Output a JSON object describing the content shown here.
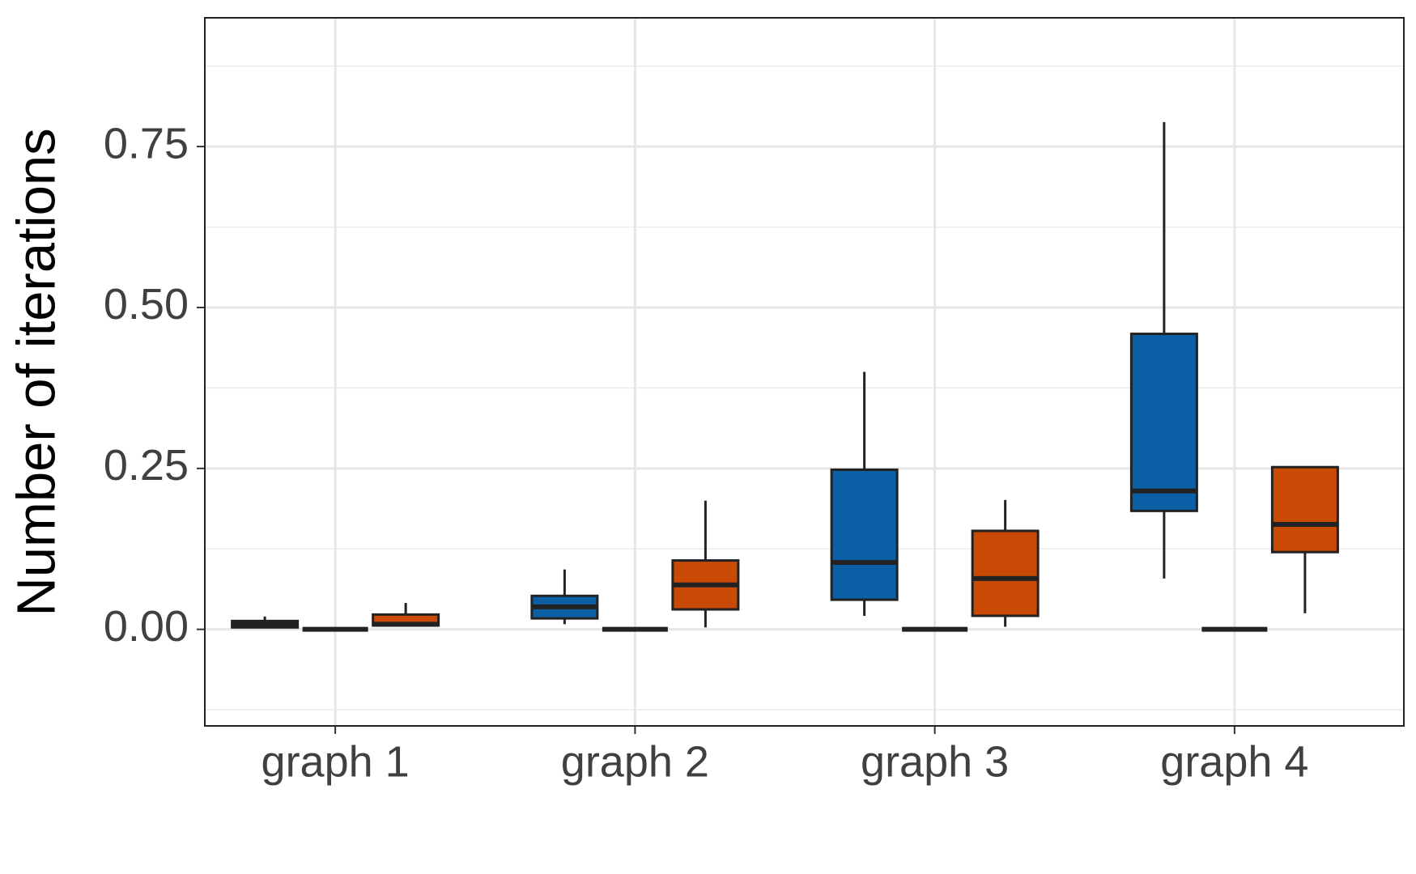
{
  "chart_data": {
    "type": "box",
    "y_label": "Number of iterations",
    "categories": [
      "graph 1",
      "graph 2",
      "graph 3",
      "graph 4"
    ],
    "series": [
      {
        "color": "#0a5fa5",
        "values": [
          {
            "min": 0.003,
            "q1": 0.003,
            "median": 0.008,
            "q3": 0.013,
            "max": 0.02
          },
          {
            "min": 0.008,
            "q1": 0.017,
            "median": 0.035,
            "q3": 0.052,
            "max": 0.093
          },
          {
            "min": 0.021,
            "q1": 0.046,
            "median": 0.104,
            "q3": 0.248,
            "max": 0.4
          },
          {
            "min": 0.079,
            "q1": 0.184,
            "median": 0.215,
            "q3": 0.459,
            "max": 0.788
          }
        ]
      },
      {
        "color": "#7f7f7f",
        "values": [
          {
            "min": 0,
            "q1": 0,
            "median": 0,
            "q3": 0,
            "max": 0
          },
          {
            "min": 0,
            "q1": 0,
            "median": 0,
            "q3": 0,
            "max": 0
          },
          {
            "min": 0,
            "q1": 0,
            "median": 0,
            "q3": 0,
            "max": 0
          },
          {
            "min": 0,
            "q1": 0,
            "median": 0,
            "q3": 0,
            "max": 0
          }
        ]
      },
      {
        "color": "#c94a05",
        "values": [
          {
            "min": 0.006,
            "q1": 0.006,
            "median": 0.008,
            "q3": 0.023,
            "max": 0.041
          },
          {
            "min": 0.003,
            "q1": 0.031,
            "median": 0.069,
            "q3": 0.107,
            "max": 0.2
          },
          {
            "min": 0.004,
            "q1": 0.021,
            "median": 0.079,
            "q3": 0.153,
            "max": 0.201
          },
          {
            "min": 0.025,
            "q1": 0.12,
            "median": 0.163,
            "q3": 0.252,
            "max": 0.252
          }
        ]
      }
    ],
    "ylim": [
      -0.15,
      0.95
    ],
    "yticks": [
      {
        "value": 0,
        "label": "0.00"
      },
      0.25,
      {
        "value": 0.5,
        "label": "0.50"
      },
      0.75
    ],
    "minor_yticks": [
      -0.125,
      0.125,
      0.375,
      0.625,
      0.875
    ],
    "grid": true
  }
}
